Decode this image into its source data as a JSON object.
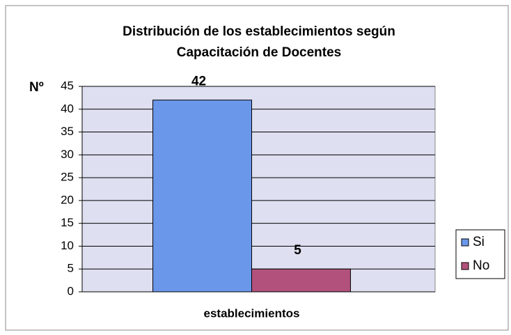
{
  "chart_data": {
    "type": "bar",
    "title": [
      "Distribución de los establecimientos según",
      "Capacitación de Docentes"
    ],
    "y_label": "Nº",
    "categories": [
      "establecimientos"
    ],
    "series": [
      {
        "name": "Si",
        "color": "#6b97ea",
        "values": [
          42
        ]
      },
      {
        "name": "No",
        "color": "#b2527c",
        "values": [
          5
        ]
      }
    ],
    "ylim": [
      0,
      45
    ],
    "yticks": [
      0,
      5,
      10,
      15,
      20,
      25,
      30,
      35,
      40,
      45
    ],
    "grid": true,
    "legend": "right"
  }
}
